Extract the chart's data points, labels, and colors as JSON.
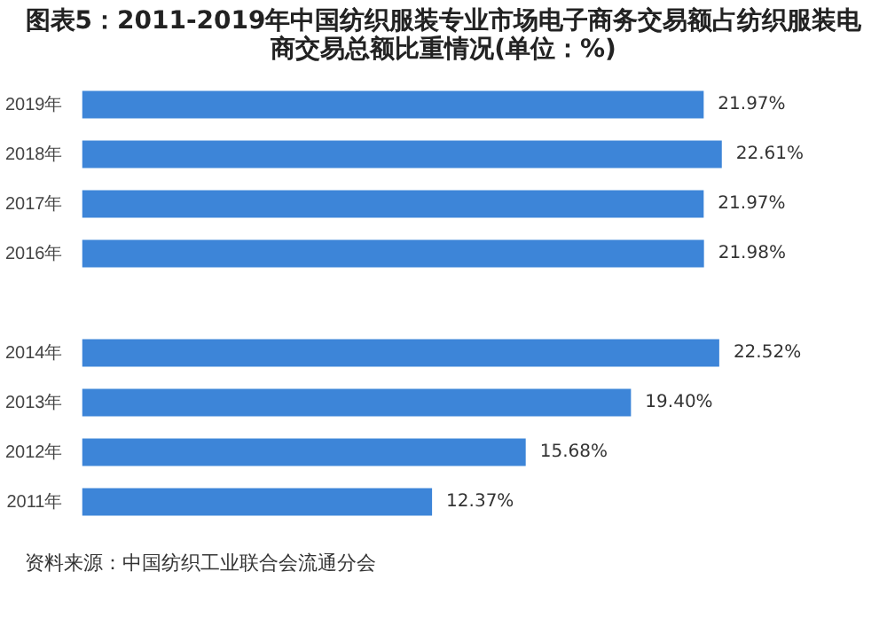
{
  "chart_data": {
    "type": "bar",
    "orientation": "horizontal",
    "title": "图表5：2011-2019年中国纺织服装专业市场电子商务交易额占纺织服装电商交易总额比重情况(单位：%)",
    "categories": [
      "2019年",
      "2018年",
      "2017年",
      "2016年",
      null,
      "2014年",
      "2013年",
      "2012年",
      "2011年"
    ],
    "values": [
      21.97,
      22.61,
      21.97,
      21.98,
      null,
      22.52,
      19.4,
      15.68,
      12.37
    ],
    "value_labels": [
      "21.97%",
      "22.61%",
      "21.97%",
      "21.98%",
      null,
      "22.52%",
      "19.40%",
      "15.68%",
      "12.37%"
    ],
    "color": "#3d85d8",
    "annotations": [
      "资料来源：中国纺织工业联合会流通分会"
    ]
  }
}
